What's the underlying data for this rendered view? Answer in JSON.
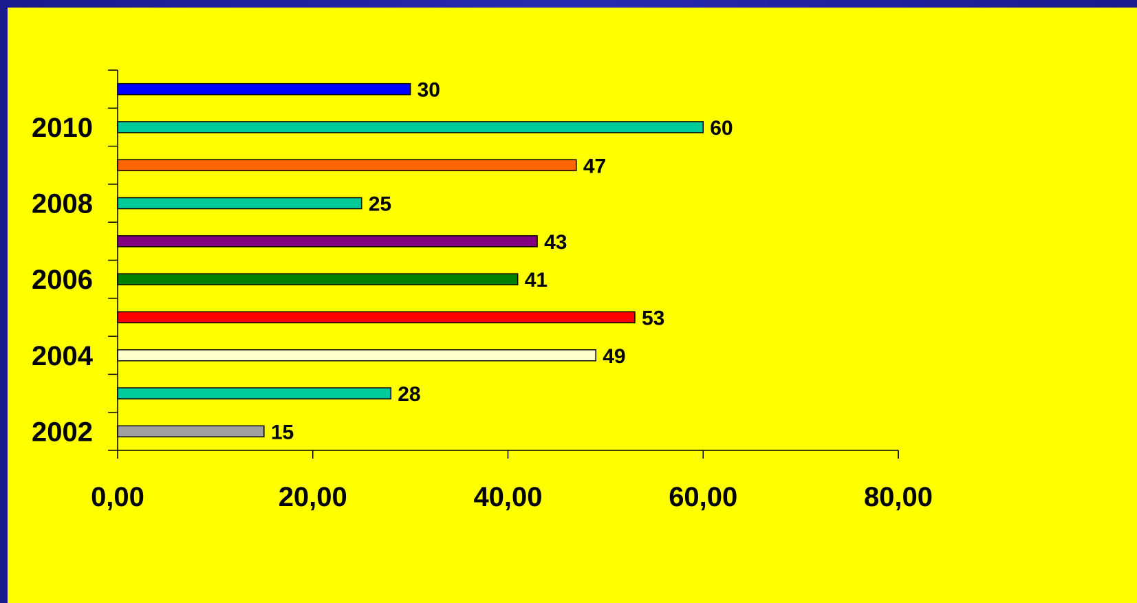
{
  "chart_data": {
    "type": "bar",
    "orientation": "horizontal",
    "category_labels": [
      "2002",
      "2004",
      "2006",
      "2008",
      "2010"
    ],
    "bars": [
      {
        "value": 15,
        "label": "15",
        "color": "#a0a0a0"
      },
      {
        "value": 28,
        "label": "28",
        "color": "#00cc99"
      },
      {
        "value": 49,
        "label": "49",
        "color": "#ffffcc"
      },
      {
        "value": 53,
        "label": "53",
        "color": "#ff0000"
      },
      {
        "value": 41,
        "label": "41",
        "color": "#008000"
      },
      {
        "value": 43,
        "label": "43",
        "color": "#800080"
      },
      {
        "value": 25,
        "label": "25",
        "color": "#00cc99"
      },
      {
        "value": 47,
        "label": "47",
        "color": "#ff6600"
      },
      {
        "value": 60,
        "label": "60",
        "color": "#00cc99"
      },
      {
        "value": 30,
        "label": "30",
        "color": "#0000ff"
      }
    ],
    "x_ticks": [
      "0,00",
      "20,00",
      "40,00",
      "60,00",
      "80,00"
    ],
    "x_tick_values": [
      0,
      20,
      40,
      60,
      80
    ],
    "xlim": [
      0,
      80
    ],
    "grid": false,
    "legend": "none"
  },
  "colors": {
    "background": "#ffff00",
    "frame": "#1a1a8c"
  }
}
